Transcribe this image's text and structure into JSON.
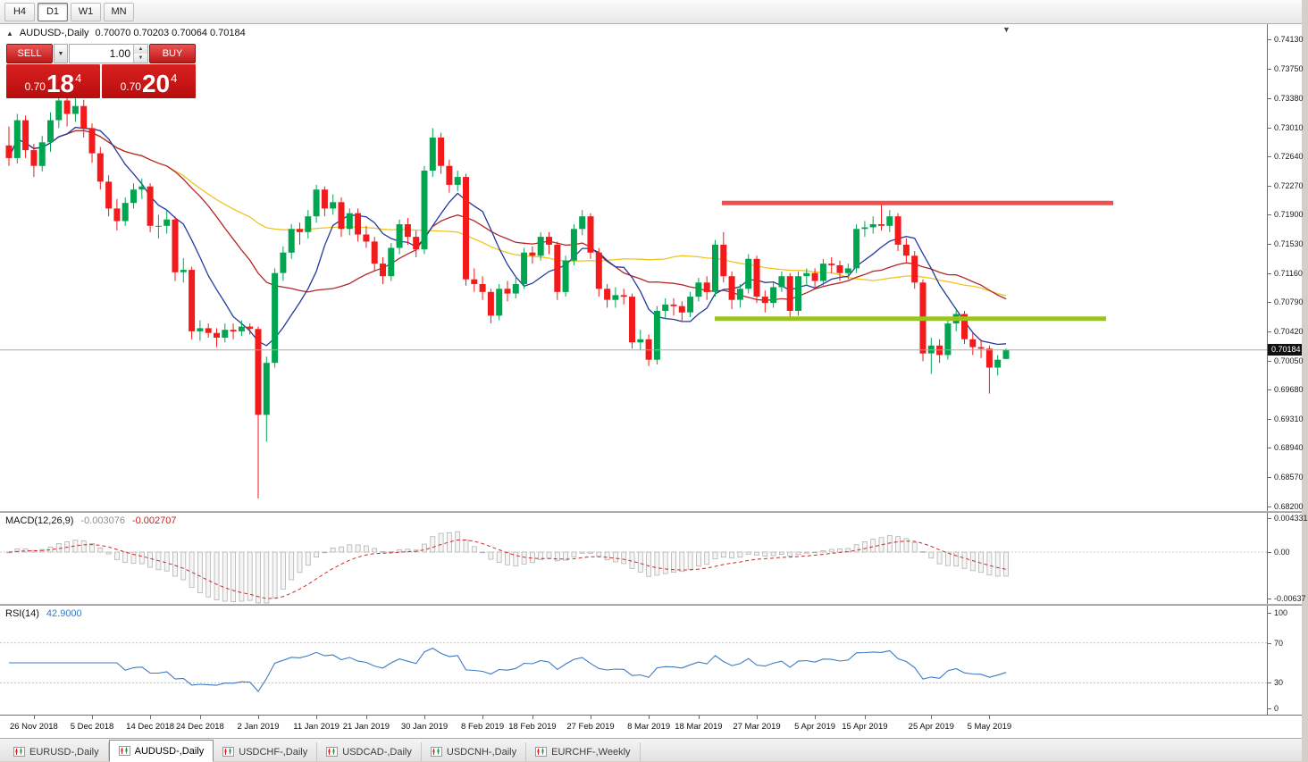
{
  "toolbar": {
    "timeframes": [
      {
        "label": "H4",
        "active": false
      },
      {
        "label": "D1",
        "active": true
      },
      {
        "label": "W1",
        "active": false
      },
      {
        "label": "MN",
        "active": false
      }
    ]
  },
  "chart": {
    "title": "AUDUSD-,Daily",
    "ohlc_readout": "0.70070 0.70203 0.70064 0.70184"
  },
  "icons": {
    "oct_toggle": "▲",
    "dropdown": "▼",
    "spin_up": "▲",
    "spin_down": "▼",
    "shift_marker": "▼"
  },
  "trade_panel": {
    "sell_label": "SELL",
    "buy_label": "BUY",
    "volume": "1.00",
    "sell_price": {
      "small": "0.70",
      "big": "18",
      "sup": "4"
    },
    "buy_price": {
      "small": "0.70",
      "big": "20",
      "sup": "4"
    }
  },
  "main_axis": {
    "ticks": [
      "0.74130",
      "0.73750",
      "0.73380",
      "0.73010",
      "0.72640",
      "0.72270",
      "0.71900",
      "0.71530",
      "0.71160",
      "0.70790",
      "0.70420",
      "0.70050",
      "0.69680",
      "0.69310",
      "0.68940",
      "0.68570",
      "0.68200"
    ],
    "current_price": "0.70184"
  },
  "macd": {
    "label": "MACD(12,26,9)",
    "value_main": "-0.003076",
    "value_signal": "-0.002707",
    "axis": [
      "0.004331",
      "0.00",
      "-0.00637"
    ]
  },
  "rsi": {
    "label": "RSI(14)",
    "value": "42.9000",
    "axis": [
      "100",
      "70",
      "30",
      "0"
    ],
    "levels": [
      70,
      30
    ]
  },
  "date_axis": {
    "labels": [
      {
        "index": 3,
        "text": "26 Nov 2018"
      },
      {
        "index": 10,
        "text": "5 Dec 2018"
      },
      {
        "index": 17,
        "text": "14 Dec 2018"
      },
      {
        "index": 23,
        "text": "24 Dec 2018"
      },
      {
        "index": 30,
        "text": "2 Jan 2019"
      },
      {
        "index": 37,
        "text": "11 Jan 2019"
      },
      {
        "index": 43,
        "text": "21 Jan 2019"
      },
      {
        "index": 50,
        "text": "30 Jan 2019"
      },
      {
        "index": 57,
        "text": "8 Feb 2019"
      },
      {
        "index": 63,
        "text": "18 Feb 2019"
      },
      {
        "index": 70,
        "text": "27 Feb 2019"
      },
      {
        "index": 77,
        "text": "8 Mar 2019"
      },
      {
        "index": 83,
        "text": "18 Mar 2019"
      },
      {
        "index": 90,
        "text": "27 Mar 2019"
      },
      {
        "index": 97,
        "text": "5 Apr 2019"
      },
      {
        "index": 103,
        "text": "15 Apr 2019"
      },
      {
        "index": 111,
        "text": "25 Apr 2019"
      },
      {
        "index": 118,
        "text": "5 May 2019"
      }
    ]
  },
  "tabs": [
    {
      "label": "EURUSD-,Daily",
      "active": false
    },
    {
      "label": "AUDUSD-,Daily",
      "active": true
    },
    {
      "label": "USDCHF-,Daily",
      "active": false
    },
    {
      "label": "USDCAD-,Daily",
      "active": false
    },
    {
      "label": "USDCNH-,Daily",
      "active": false
    },
    {
      "label": "EURCHF-,Weekly",
      "active": false
    }
  ],
  "chart_data": {
    "type": "candlestick",
    "symbol": "AUDUSD",
    "timeframe": "Daily",
    "ylim": [
      0.6814,
      0.7432
    ],
    "colors": {
      "up": "#00a550",
      "down": "#f21a1a",
      "ma_fast": "#223a9c",
      "ma_mid": "#b22626",
      "ma_slow": "#f0c420",
      "macd_hist_stroke": "#b2b2b2",
      "macd_hist_fill": "#f5f5f5",
      "macd_signal": "#d02828",
      "rsi_line": "#3b7bc4",
      "current_price_line": "#a8a8a8"
    },
    "moving_averages": {
      "fast_period": 8,
      "mid_period": 20,
      "slow_period": 50
    },
    "hlines": [
      {
        "price": 0.7205,
        "x1": 808,
        "x2": 1246,
        "color": "#f04f4f",
        "width": 5
      },
      {
        "price": 0.7058,
        "x1": 800,
        "x2": 1238,
        "color": "#9bc41e",
        "width": 5
      }
    ],
    "current_price": 0.70184,
    "ohlc": [
      [
        0.7278,
        0.7302,
        0.7252,
        0.7262
      ],
      [
        0.7262,
        0.7318,
        0.7255,
        0.731
      ],
      [
        0.731,
        0.7316,
        0.7262,
        0.7272
      ],
      [
        0.7272,
        0.728,
        0.7238,
        0.7252
      ],
      [
        0.7252,
        0.729,
        0.7245,
        0.7282
      ],
      [
        0.7282,
        0.732,
        0.727,
        0.731
      ],
      [
        0.731,
        0.7344,
        0.73,
        0.7335
      ],
      [
        0.7335,
        0.734,
        0.7302,
        0.7318
      ],
      [
        0.7318,
        0.7338,
        0.7308,
        0.7328
      ],
      [
        0.7328,
        0.7336,
        0.7288,
        0.73
      ],
      [
        0.73,
        0.7306,
        0.7256,
        0.7268
      ],
      [
        0.7268,
        0.7276,
        0.7222,
        0.7232
      ],
      [
        0.7232,
        0.724,
        0.7188,
        0.7198
      ],
      [
        0.7198,
        0.721,
        0.717,
        0.7182
      ],
      [
        0.7182,
        0.7212,
        0.7176,
        0.7205
      ],
      [
        0.7205,
        0.723,
        0.7198,
        0.7222
      ],
      [
        0.7222,
        0.7236,
        0.721,
        0.7226
      ],
      [
        0.7226,
        0.723,
        0.7168,
        0.7176
      ],
      [
        0.7176,
        0.719,
        0.716,
        0.7176
      ],
      [
        0.7176,
        0.7196,
        0.7166,
        0.7184
      ],
      [
        0.7184,
        0.7188,
        0.7106,
        0.7117
      ],
      [
        0.7117,
        0.7135,
        0.7104,
        0.712
      ],
      [
        0.712,
        0.7124,
        0.7032,
        0.7042
      ],
      [
        0.7042,
        0.7056,
        0.703,
        0.7046
      ],
      [
        0.7046,
        0.7052,
        0.7034,
        0.704
      ],
      [
        0.704,
        0.7046,
        0.7022,
        0.7034
      ],
      [
        0.7034,
        0.7052,
        0.7028,
        0.7044
      ],
      [
        0.7044,
        0.7052,
        0.7032,
        0.7042
      ],
      [
        0.7042,
        0.7056,
        0.7036,
        0.7048
      ],
      [
        0.7048,
        0.7052,
        0.7038,
        0.7045
      ],
      [
        0.7045,
        0.7048,
        0.683,
        0.6936
      ],
      [
        0.6936,
        0.701,
        0.6902,
        0.7002
      ],
      [
        0.7002,
        0.7122,
        0.6996,
        0.7116
      ],
      [
        0.7116,
        0.715,
        0.7106,
        0.7142
      ],
      [
        0.7142,
        0.7178,
        0.7134,
        0.7172
      ],
      [
        0.7172,
        0.718,
        0.7152,
        0.7168
      ],
      [
        0.7168,
        0.7196,
        0.716,
        0.7188
      ],
      [
        0.7188,
        0.7228,
        0.718,
        0.7222
      ],
      [
        0.7222,
        0.7226,
        0.7188,
        0.7198
      ],
      [
        0.7198,
        0.7216,
        0.719,
        0.7206
      ],
      [
        0.7206,
        0.7212,
        0.7162,
        0.7172
      ],
      [
        0.7172,
        0.7198,
        0.7164,
        0.7192
      ],
      [
        0.7192,
        0.7198,
        0.7156,
        0.7165
      ],
      [
        0.7165,
        0.7176,
        0.7148,
        0.7156
      ],
      [
        0.7156,
        0.7162,
        0.7118,
        0.7128
      ],
      [
        0.7128,
        0.7136,
        0.7102,
        0.7112
      ],
      [
        0.7112,
        0.7154,
        0.7106,
        0.7148
      ],
      [
        0.7148,
        0.7184,
        0.714,
        0.7178
      ],
      [
        0.7178,
        0.7186,
        0.7152,
        0.7162
      ],
      [
        0.7162,
        0.717,
        0.7136,
        0.7146
      ],
      [
        0.7146,
        0.7252,
        0.714,
        0.7246
      ],
      [
        0.7246,
        0.73,
        0.7238,
        0.7288
      ],
      [
        0.7288,
        0.7294,
        0.7242,
        0.7252
      ],
      [
        0.7252,
        0.726,
        0.7218,
        0.7228
      ],
      [
        0.7228,
        0.7246,
        0.722,
        0.7238
      ],
      [
        0.7238,
        0.7242,
        0.71,
        0.7108
      ],
      [
        0.7108,
        0.7122,
        0.7092,
        0.7102
      ],
      [
        0.7102,
        0.7112,
        0.7082,
        0.7092
      ],
      [
        0.7092,
        0.7096,
        0.7052,
        0.7062
      ],
      [
        0.7062,
        0.7102,
        0.7056,
        0.7096
      ],
      [
        0.7096,
        0.7106,
        0.708,
        0.709
      ],
      [
        0.709,
        0.7112,
        0.7084,
        0.7102
      ],
      [
        0.7102,
        0.7148,
        0.7096,
        0.7142
      ],
      [
        0.7142,
        0.715,
        0.7128,
        0.7138
      ],
      [
        0.7138,
        0.7168,
        0.7132,
        0.7162
      ],
      [
        0.7162,
        0.7168,
        0.714,
        0.7152
      ],
      [
        0.7152,
        0.7156,
        0.7082,
        0.7092
      ],
      [
        0.7092,
        0.7138,
        0.7086,
        0.7132
      ],
      [
        0.7132,
        0.7178,
        0.7126,
        0.7172
      ],
      [
        0.7172,
        0.7196,
        0.7164,
        0.7188
      ],
      [
        0.7188,
        0.7192,
        0.7134,
        0.7142
      ],
      [
        0.7142,
        0.7148,
        0.7086,
        0.7096
      ],
      [
        0.7096,
        0.7102,
        0.7072,
        0.7082
      ],
      [
        0.7082,
        0.7098,
        0.7072,
        0.7088
      ],
      [
        0.7088,
        0.7096,
        0.7076,
        0.7086
      ],
      [
        0.7086,
        0.709,
        0.702,
        0.7028
      ],
      [
        0.7028,
        0.7044,
        0.7018,
        0.7032
      ],
      [
        0.7032,
        0.7038,
        0.6998,
        0.7006
      ],
      [
        0.7006,
        0.7074,
        0.7,
        0.7068
      ],
      [
        0.7068,
        0.7084,
        0.7058,
        0.7076
      ],
      [
        0.7076,
        0.7084,
        0.7062,
        0.7074
      ],
      [
        0.7074,
        0.708,
        0.7054,
        0.7066
      ],
      [
        0.7066,
        0.7092,
        0.706,
        0.7086
      ],
      [
        0.7086,
        0.711,
        0.708,
        0.7104
      ],
      [
        0.7104,
        0.7112,
        0.7082,
        0.7092
      ],
      [
        0.7092,
        0.7158,
        0.7086,
        0.7152
      ],
      [
        0.7152,
        0.7168,
        0.7104,
        0.7112
      ],
      [
        0.7112,
        0.7118,
        0.707,
        0.7082
      ],
      [
        0.7082,
        0.7102,
        0.7072,
        0.7096
      ],
      [
        0.7096,
        0.714,
        0.709,
        0.7134
      ],
      [
        0.7134,
        0.7138,
        0.7078,
        0.7086
      ],
      [
        0.7086,
        0.7094,
        0.7066,
        0.7078
      ],
      [
        0.7078,
        0.7104,
        0.7072,
        0.7098
      ],
      [
        0.7098,
        0.7118,
        0.7092,
        0.7112
      ],
      [
        0.7112,
        0.7116,
        0.706,
        0.7068
      ],
      [
        0.7068,
        0.7118,
        0.7062,
        0.7112
      ],
      [
        0.7112,
        0.7122,
        0.71,
        0.7116
      ],
      [
        0.7116,
        0.7122,
        0.7096,
        0.7106
      ],
      [
        0.7106,
        0.7134,
        0.71,
        0.7128
      ],
      [
        0.7128,
        0.7136,
        0.7116,
        0.7126
      ],
      [
        0.7126,
        0.7132,
        0.7106,
        0.7116
      ],
      [
        0.7116,
        0.7128,
        0.7108,
        0.7122
      ],
      [
        0.7122,
        0.7178,
        0.7116,
        0.7172
      ],
      [
        0.7172,
        0.7182,
        0.7162,
        0.7174
      ],
      [
        0.7174,
        0.7188,
        0.7166,
        0.7178
      ],
      [
        0.7178,
        0.7206,
        0.717,
        0.7176
      ],
      [
        0.7176,
        0.7196,
        0.7168,
        0.7188
      ],
      [
        0.7188,
        0.7192,
        0.7144,
        0.7152
      ],
      [
        0.7152,
        0.716,
        0.713,
        0.7138
      ],
      [
        0.7138,
        0.7144,
        0.7096,
        0.7104
      ],
      [
        0.7104,
        0.7108,
        0.7004,
        0.7014
      ],
      [
        0.7014,
        0.7034,
        0.6988,
        0.7024
      ],
      [
        0.7024,
        0.7032,
        0.7002,
        0.7012
      ],
      [
        0.7012,
        0.7058,
        0.7006,
        0.7052
      ],
      [
        0.7052,
        0.707,
        0.7042,
        0.7064
      ],
      [
        0.7064,
        0.7068,
        0.7026,
        0.7032
      ],
      [
        0.7032,
        0.704,
        0.7012,
        0.7022
      ],
      [
        0.7022,
        0.7032,
        0.7008,
        0.702
      ],
      [
        0.702,
        0.7024,
        0.6963,
        0.6996
      ],
      [
        0.6996,
        0.7012,
        0.6986,
        0.7006
      ],
      [
        0.7007,
        0.70203,
        0.70064,
        0.70184
      ]
    ]
  }
}
